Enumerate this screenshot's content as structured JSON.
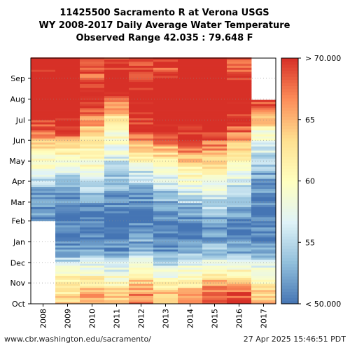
{
  "header": {
    "title_line1": "11425500 Sacramento R at Verona USGS",
    "title_line2": "WY 2008-2017 Daily Average Water Temperature",
    "title_line3": "Observed Range 42.035 : 79.648 F"
  },
  "footer": {
    "url": "www.cbr.washington.edu/sacramento/",
    "timestamp": "27 Apr 2025 15:46:51 PDT"
  },
  "chart_data": {
    "type": "heatmap",
    "title": "11425500 Sacramento R at Verona USGS\nWY 2008-2017 Daily Average Water Temperature\nObserved Range 42.035 : 79.648 F",
    "x_categories": [
      "2008",
      "2009",
      "2010",
      "2011",
      "2012",
      "2013",
      "2014",
      "2015",
      "2016",
      "2017"
    ],
    "y_months": [
      "Oct",
      "Nov",
      "Dec",
      "Jan",
      "Feb",
      "Mar",
      "Apr",
      "May",
      "Jun",
      "Jul",
      "Aug",
      "Sep"
    ],
    "y_month_start_index": [
      0,
      31,
      61,
      92,
      123,
      151,
      182,
      212,
      243,
      273,
      304,
      335
    ],
    "grid": "dotted horizontal at month starts",
    "observed_range": [
      42.035,
      79.648
    ],
    "colorbar": {
      "min": 50,
      "max": 70,
      "ticks": [
        50,
        55,
        60,
        65,
        70
      ],
      "tick_labels": [
        "< 50.000",
        "55",
        "60",
        "65",
        "> 70.000"
      ],
      "colors": [
        "#4575b4",
        "#91bfdb",
        "#e0f3f8",
        "#ffffbf",
        "#fee090",
        "#fc8d59",
        "#d73027"
      ]
    },
    "monthly_mean_temp_F": {
      "2008": [
        null,
        null,
        null,
        null,
        51,
        52,
        58,
        61,
        68,
        72,
        73,
        71
      ],
      "2009": [
        63,
        60,
        52,
        50,
        50,
        52,
        56,
        62,
        70,
        72,
        73,
        72
      ],
      "2010": [
        65,
        60,
        52,
        50,
        50,
        54,
        59,
        61,
        64,
        68,
        71,
        67
      ],
      "2011": [
        64,
        58,
        52,
        50,
        50,
        53,
        55,
        58,
        60,
        65,
        71,
        70
      ],
      "2012": [
        67,
        61,
        54,
        51,
        50,
        53,
        56,
        64,
        69,
        71,
        71,
        69
      ],
      "2013": [
        64,
        58,
        51,
        50,
        51,
        54,
        59,
        64,
        71,
        73,
        72,
        69
      ],
      "2014": [
        65,
        60,
        54,
        50,
        52,
        57,
        61,
        67,
        71,
        73,
        74,
        73
      ],
      "2015": [
        69,
        61,
        54,
        51,
        54,
        57,
        62,
        66,
        70,
        73,
        74,
        73
      ],
      "2016": [
        69,
        61,
        53,
        50,
        52,
        55,
        58,
        63,
        68,
        71,
        72,
        69
      ],
      "2017": [
        64,
        59,
        52,
        51,
        50,
        51,
        53,
        56,
        60,
        69,
        null,
        null
      ]
    }
  }
}
